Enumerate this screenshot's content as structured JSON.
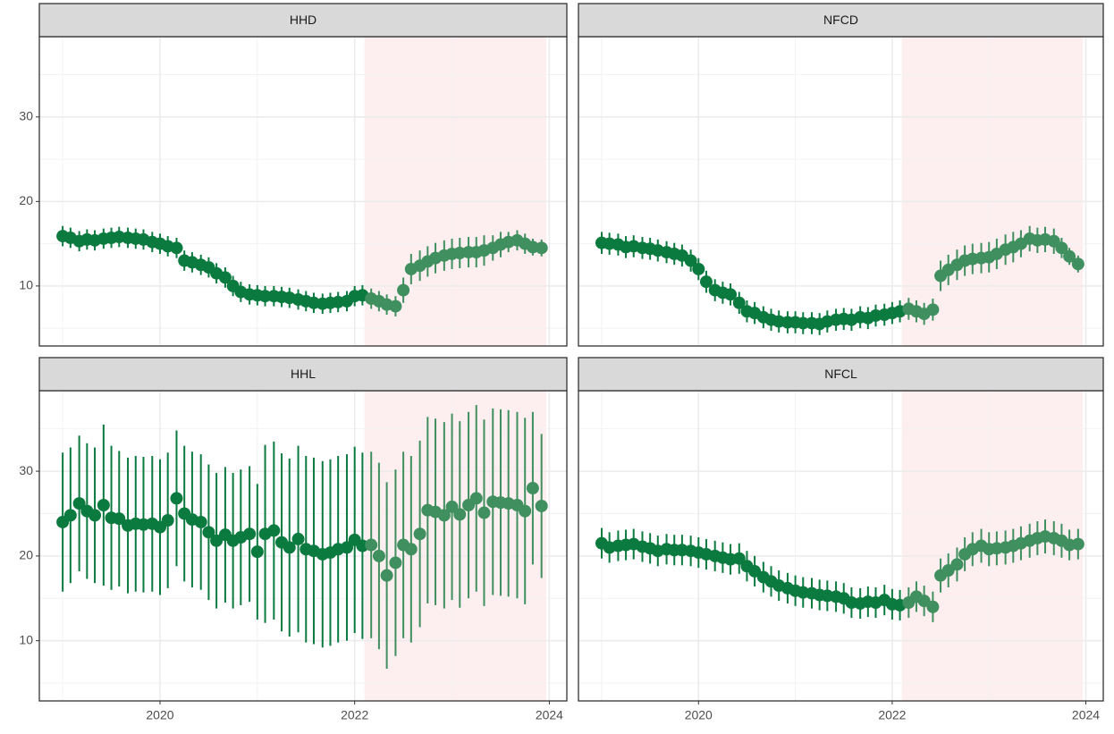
{
  "chart_data": {
    "type": "scatter",
    "x": [
      2019,
      2019.08,
      2019.17,
      2019.25,
      2019.33,
      2019.42,
      2019.5,
      2019.58,
      2019.67,
      2019.75,
      2019.83,
      2019.92,
      2020,
      2020.08,
      2020.17,
      2020.25,
      2020.33,
      2020.42,
      2020.5,
      2020.58,
      2020.67,
      2020.75,
      2020.83,
      2020.92,
      2021,
      2021.08,
      2021.17,
      2021.25,
      2021.33,
      2021.42,
      2021.5,
      2021.58,
      2021.67,
      2021.75,
      2021.83,
      2021.92,
      2022,
      2022.08,
      2022.17,
      2022.25,
      2022.33,
      2022.42,
      2022.5,
      2022.58,
      2022.67,
      2022.75,
      2022.83,
      2022.92,
      2023,
      2023.08,
      2023.17,
      2023.25,
      2023.33,
      2023.42,
      2023.5,
      2023.58,
      2023.67,
      2023.75,
      2023.83,
      2023.92
    ],
    "xlim": [
      2018.76,
      2024.18
    ],
    "ylim": [
      2.9,
      39.5
    ],
    "xticks": [
      2020,
      2022,
      2024
    ],
    "yticks": [
      10,
      20,
      30
    ],
    "grid": true,
    "minor_grid": true,
    "shade": [
      2022.1,
      2023.97
    ],
    "shade_color": "#fdeef0",
    "color": "#0a7a3f",
    "shade_point_color": "#3f8f5f",
    "facets": [
      {
        "title": "HHD",
        "values": [
          15.9,
          15.7,
          15.3,
          15.5,
          15.4,
          15.6,
          15.7,
          15.8,
          15.7,
          15.6,
          15.5,
          15.2,
          15.0,
          14.7,
          14.5,
          13.0,
          12.8,
          12.5,
          12.2,
          11.5,
          11.0,
          10.0,
          9.3,
          9.0,
          8.9,
          8.8,
          8.8,
          8.7,
          8.6,
          8.4,
          8.2,
          8.0,
          7.9,
          8.0,
          8.1,
          8.2,
          8.8,
          8.9,
          8.5,
          8.2,
          7.8,
          7.6,
          9.5,
          12.0,
          12.4,
          12.9,
          13.3,
          13.6,
          13.8,
          13.9,
          14.0,
          14.0,
          14.2,
          14.5,
          14.9,
          15.2,
          15.4,
          15.0,
          14.6,
          14.5
        ],
        "errors": [
          1.2,
          1.2,
          1.2,
          1.2,
          1.2,
          1.2,
          1.2,
          1.2,
          1.2,
          1.2,
          1.2,
          1.2,
          1.2,
          1.2,
          1.2,
          1.2,
          1.2,
          1.2,
          1.2,
          1.2,
          1.2,
          1.2,
          1.2,
          1.2,
          1.2,
          1.2,
          1.2,
          1.2,
          1.2,
          1.2,
          1.2,
          1.2,
          1.2,
          1.2,
          1.2,
          1.2,
          1.2,
          1.2,
          1.2,
          1.2,
          1.2,
          1.2,
          1.5,
          1.8,
          1.8,
          1.8,
          1.8,
          1.8,
          1.8,
          1.8,
          1.8,
          1.8,
          1.8,
          1.5,
          1.5,
          1.2,
          1.2,
          1.2,
          1.0,
          1.0
        ]
      },
      {
        "title": "NFCD",
        "values": [
          15.1,
          15.0,
          14.9,
          14.6,
          14.7,
          14.5,
          14.4,
          14.2,
          14.0,
          13.8,
          13.6,
          13.0,
          12.0,
          10.5,
          9.5,
          9.2,
          9.0,
          8.0,
          7.0,
          6.8,
          6.3,
          6.0,
          5.8,
          5.7,
          5.7,
          5.6,
          5.6,
          5.5,
          5.8,
          6.0,
          6.1,
          6.0,
          6.3,
          6.2,
          6.5,
          6.6,
          6.8,
          7.0,
          7.3,
          7.0,
          6.7,
          7.2,
          11.2,
          11.9,
          12.5,
          13.0,
          13.2,
          13.3,
          13.4,
          13.8,
          14.3,
          14.6,
          15.0,
          15.6,
          15.4,
          15.5,
          15.3,
          14.5,
          13.5,
          12.6
        ],
        "errors": [
          1.3,
          1.3,
          1.3,
          1.3,
          1.3,
          1.3,
          1.3,
          1.3,
          1.3,
          1.3,
          1.3,
          1.3,
          1.3,
          1.3,
          1.3,
          1.3,
          1.3,
          1.3,
          1.3,
          1.3,
          1.3,
          1.3,
          1.3,
          1.3,
          1.3,
          1.3,
          1.3,
          1.3,
          1.3,
          1.3,
          1.3,
          1.3,
          1.3,
          1.3,
          1.3,
          1.3,
          1.3,
          1.3,
          1.3,
          1.3,
          1.3,
          1.3,
          1.8,
          1.8,
          1.8,
          1.8,
          1.8,
          1.8,
          1.8,
          1.8,
          1.8,
          1.8,
          1.6,
          1.5,
          1.5,
          1.5,
          1.5,
          1.2,
          1.0,
          1.0
        ]
      },
      {
        "title": "HHL",
        "values": [
          24.0,
          24.8,
          26.2,
          25.3,
          24.8,
          26.0,
          24.5,
          24.4,
          23.6,
          23.8,
          23.7,
          23.8,
          23.4,
          24.2,
          26.8,
          25.0,
          24.3,
          24.0,
          22.8,
          21.8,
          22.5,
          21.8,
          22.2,
          22.6,
          20.5,
          22.6,
          23.0,
          21.6,
          21.0,
          22.0,
          20.8,
          20.6,
          20.2,
          20.4,
          20.8,
          21.0,
          21.9,
          21.2,
          21.3,
          20.0,
          17.7,
          19.2,
          21.3,
          20.8,
          22.6,
          25.4,
          25.2,
          24.8,
          25.8,
          24.9,
          26.0,
          26.8,
          25.1,
          26.4,
          26.3,
          26.2,
          26.0,
          25.3,
          28.0,
          25.9
        ],
        "errors": [
          8.2,
          8.0,
          8.0,
          8.0,
          8.0,
          9.5,
          8.5,
          8.0,
          8.0,
          8.0,
          8.0,
          8.0,
          8.0,
          8.0,
          8.0,
          8.0,
          8.0,
          8.0,
          8.0,
          8.0,
          8.0,
          8.0,
          8.0,
          8.0,
          8.0,
          10.5,
          10.5,
          10.5,
          10.5,
          11.0,
          11.0,
          11.0,
          11.0,
          11.0,
          11.0,
          11.0,
          11.0,
          11.0,
          11.0,
          11.0,
          11.0,
          11.0,
          11.0,
          11.0,
          11.0,
          11.0,
          11.0,
          11.0,
          11.0,
          11.0,
          11.0,
          11.0,
          11.0,
          11.0,
          11.0,
          11.0,
          11.0,
          11.0,
          9.0,
          8.5
        ]
      },
      {
        "title": "NFCL",
        "values": [
          21.5,
          21.0,
          21.2,
          21.3,
          21.4,
          21.1,
          20.9,
          20.6,
          20.8,
          20.7,
          20.7,
          20.6,
          20.4,
          20.2,
          20.0,
          19.8,
          19.6,
          19.7,
          18.8,
          18.2,
          17.5,
          17.0,
          16.5,
          16.2,
          15.9,
          15.7,
          15.6,
          15.4,
          15.3,
          15.2,
          15.0,
          14.5,
          14.4,
          14.6,
          14.5,
          14.8,
          14.3,
          14.2,
          14.5,
          15.2,
          14.7,
          14.0,
          17.7,
          18.3,
          19.0,
          20.2,
          20.8,
          21.2,
          20.8,
          20.9,
          21.0,
          21.2,
          21.5,
          21.8,
          22.1,
          22.3,
          22.1,
          21.8,
          21.3,
          21.4
        ],
        "errors": [
          1.8,
          1.8,
          1.8,
          1.8,
          1.8,
          1.8,
          1.8,
          1.8,
          1.8,
          1.8,
          1.8,
          1.8,
          1.8,
          1.8,
          1.8,
          1.8,
          1.8,
          1.8,
          1.8,
          1.8,
          1.8,
          1.8,
          1.8,
          1.8,
          1.8,
          1.8,
          1.8,
          1.8,
          1.8,
          1.8,
          1.8,
          1.8,
          1.8,
          1.8,
          1.8,
          1.8,
          1.8,
          1.8,
          1.8,
          1.8,
          1.8,
          1.8,
          2.0,
          2.0,
          2.0,
          2.0,
          2.0,
          2.0,
          2.0,
          2.0,
          2.0,
          2.0,
          2.0,
          2.0,
          2.0,
          2.0,
          2.0,
          2.0,
          1.8,
          1.8
        ]
      }
    ]
  }
}
